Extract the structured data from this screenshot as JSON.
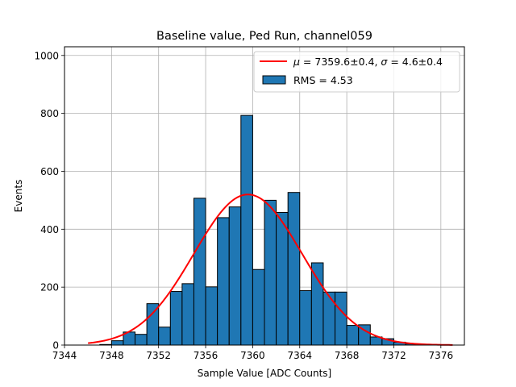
{
  "chart_data": {
    "type": "bar",
    "title": "Baseline value, Ped Run, channel059",
    "xlabel": "Sample Value [ADC Counts]",
    "ylabel": "Events",
    "xlim": [
      7344,
      7378
    ],
    "ylim": [
      0,
      1030
    ],
    "xticks": [
      7344,
      7348,
      7352,
      7356,
      7360,
      7364,
      7368,
      7372,
      7376
    ],
    "yticks": [
      0,
      200,
      400,
      600,
      800,
      1000
    ],
    "grid": true,
    "legend_position": "top-right",
    "histogram": {
      "name": "RMS = 4.53",
      "color": "#1f77b4",
      "bins": [
        {
          "x0": 7347.0,
          "x1": 7348.0,
          "value": 2
        },
        {
          "x0": 7348.0,
          "x1": 7349.0,
          "value": 15
        },
        {
          "x0": 7349.0,
          "x1": 7350.0,
          "value": 45
        },
        {
          "x0": 7350.0,
          "x1": 7351.0,
          "value": 37
        },
        {
          "x0": 7351.0,
          "x1": 7352.0,
          "value": 143
        },
        {
          "x0": 7352.0,
          "x1": 7353.0,
          "value": 62
        },
        {
          "x0": 7353.0,
          "x1": 7354.0,
          "value": 185
        },
        {
          "x0": 7354.0,
          "x1": 7355.0,
          "value": 212
        },
        {
          "x0": 7355.0,
          "x1": 7356.0,
          "value": 507
        },
        {
          "x0": 7356.0,
          "x1": 7357.0,
          "value": 201
        },
        {
          "x0": 7357.0,
          "x1": 7358.0,
          "value": 440
        },
        {
          "x0": 7358.0,
          "x1": 7359.0,
          "value": 477
        },
        {
          "x0": 7359.0,
          "x1": 7360.0,
          "value": 793
        },
        {
          "x0": 7360.0,
          "x1": 7361.0,
          "value": 261
        },
        {
          "x0": 7361.0,
          "x1": 7362.0,
          "value": 500
        },
        {
          "x0": 7362.0,
          "x1": 7363.0,
          "value": 458
        },
        {
          "x0": 7363.0,
          "x1": 7364.0,
          "value": 527
        },
        {
          "x0": 7364.0,
          "x1": 7365.0,
          "value": 188
        },
        {
          "x0": 7365.0,
          "x1": 7366.0,
          "value": 284
        },
        {
          "x0": 7366.0,
          "x1": 7367.0,
          "value": 183
        },
        {
          "x0": 7367.0,
          "x1": 7368.0,
          "value": 183
        },
        {
          "x0": 7368.0,
          "x1": 7369.0,
          "value": 68
        },
        {
          "x0": 7369.0,
          "x1": 7370.0,
          "value": 70
        },
        {
          "x0": 7370.0,
          "x1": 7371.0,
          "value": 28
        },
        {
          "x0": 7371.0,
          "x1": 7372.0,
          "value": 22
        },
        {
          "x0": 7372.0,
          "x1": 7373.0,
          "value": 10
        },
        {
          "x0": 7373.0,
          "x1": 7374.0,
          "value": 4
        }
      ]
    },
    "fit": {
      "name": "μ = 7359.6±0.4, σ = 4.6±0.4",
      "label_parts": {
        "mu_symbol": "μ",
        "mu_text": " = 7359.6±0.4, ",
        "sigma_symbol": "σ",
        "sigma_text": " = 4.6±0.4"
      },
      "color": "#ff0000",
      "mu": 7359.6,
      "sigma": 4.6,
      "amplitude": 520,
      "x_range": [
        7346.0,
        7377.0
      ]
    }
  }
}
